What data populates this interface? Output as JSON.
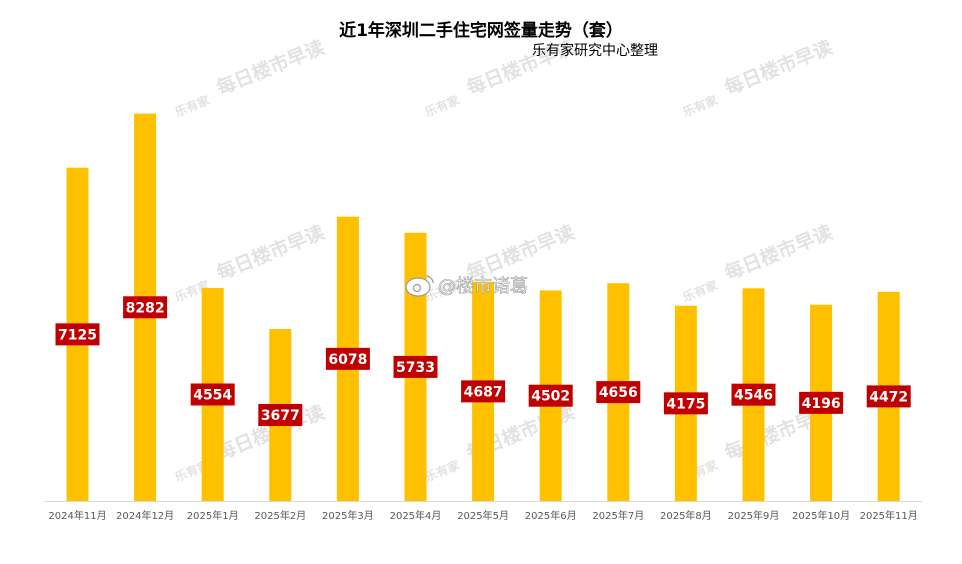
{
  "title": "近1年深圳二手住宅网签量走势（套）",
  "subtitle": "乐有家研究中心整理",
  "watermark": {
    "text": "每日楼市早读",
    "logo_text": "乐有家",
    "credit": "@楼市诸葛"
  },
  "colors": {
    "bar": "#FFC000",
    "label_bg": "#C00000",
    "label_text": "#FFFFFF",
    "axis_text": "#595959",
    "axis_line": "#D9D9D9"
  },
  "chart_data": {
    "type": "bar",
    "title": "近1年深圳二手住宅网签量走势（套）",
    "subtitle": "乐有家研究中心整理",
    "categories": [
      "2024年11月",
      "2024年12月",
      "2025年1月",
      "2025年2月",
      "2025年3月",
      "2025年4月",
      "2025年5月",
      "2025年6月",
      "2025年7月",
      "2025年8月",
      "2025年9月",
      "2025年10月",
      "2025年11月"
    ],
    "values": [
      7125,
      8282,
      4554,
      3677,
      6078,
      5733,
      4687,
      4502,
      4656,
      4175,
      4546,
      4196,
      4472
    ],
    "xlabel": "",
    "ylabel": "",
    "ylim": [
      0,
      9000
    ],
    "grid": false,
    "legend": "none",
    "data_labels": true
  }
}
